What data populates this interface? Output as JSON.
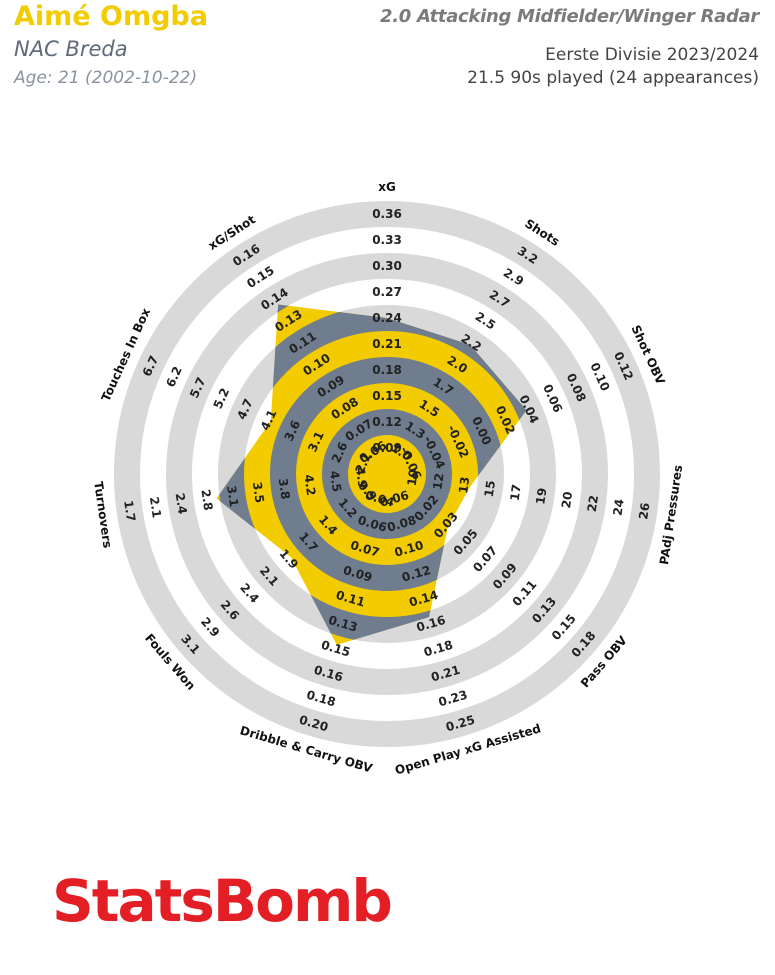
{
  "header": {
    "player_name": "Aimé Omgba",
    "team": "NAC Breda",
    "age": "Age: 21 (2002-10-22)",
    "radar_title": "2.0 Attacking Midfielder/Winger Radar",
    "competition": "Eerste Divisie 2023/2024",
    "minutes": "21.5 90s played (24 appearances)"
  },
  "brand": {
    "logo_text": "StatsBomb"
  },
  "colors": {
    "player_fill": "#f2cb00",
    "ring_dark": "#6f7d8e",
    "ring_light": "#d9d9d9",
    "logo": "#e31e24"
  },
  "chart_data": {
    "type": "radar",
    "metrics": [
      {
        "label": "xG",
        "ticks": [
          "0.09",
          "0.12",
          "0.15",
          "0.18",
          "0.21",
          "0.24",
          "0.27",
          "0.30",
          "0.33",
          "0.36"
        ],
        "value": 0.24
      },
      {
        "label": "Shots",
        "ticks": [
          "1.0",
          "1.3",
          "1.5",
          "1.7",
          "2.0",
          "2.2",
          "2.5",
          "2.7",
          "2.9",
          "3.2"
        ],
        "value": 2.2
      },
      {
        "label": "Shot OBV",
        "ticks": [
          "-0.06",
          "-0.04",
          "-0.02",
          "0.00",
          "0.02",
          "0.04",
          "0.06",
          "0.08",
          "0.10",
          "0.12"
        ],
        "value": 0.038
      },
      {
        "label": "PAdj Pressures",
        "ticks": [
          "10",
          "12",
          "13",
          "15",
          "17",
          "19",
          "20",
          "22",
          "24",
          "26"
        ],
        "value": 14.0
      },
      {
        "label": "Pass OBV",
        "ticks": [
          "0.02",
          "0.03",
          "0.05",
          "0.07",
          "0.09",
          "0.11",
          "0.13",
          "0.15",
          "0.18"
        ],
        "value": 0.062
      },
      {
        "label": "Open Play xG Assisted",
        "ticks": [
          "0.06",
          "0.08",
          "0.10",
          "0.12",
          "0.14",
          "0.16",
          "0.18",
          "0.21",
          "0.23",
          "0.25"
        ],
        "value": 0.16
      },
      {
        "label": "Dribble & Carry OBV",
        "ticks": [
          "0.04",
          "0.06",
          "0.07",
          "0.09",
          "0.11",
          "0.13",
          "0.15",
          "0.16",
          "0.18",
          "0.20"
        ],
        "value": 0.144
      },
      {
        "label": "Fouls Won",
        "ticks": [
          "0.9",
          "1.2",
          "1.4",
          "1.7",
          "1.9",
          "2.1",
          "2.4",
          "2.6",
          "2.9",
          "3.1"
        ],
        "value": 1.85
      },
      {
        "label": "Turnovers",
        "ticks": [
          "4.9",
          "4.5",
          "4.2",
          "3.8",
          "3.5",
          "3.1",
          "2.8",
          "2.4",
          "2.1",
          "1.7"
        ],
        "value": 2.9
      },
      {
        "label": "Touches In Box",
        "ticks": [
          "2.1",
          "2.6",
          "3.1",
          "3.6",
          "4.1",
          "4.7",
          "5.2",
          "5.7",
          "6.2",
          "6.7"
        ],
        "value": 4.1
      },
      {
        "label": "xG/Shot",
        "ticks": [
          "0.06",
          "0.07",
          "0.08",
          "0.09",
          "0.10",
          "0.11",
          "0.13",
          "0.14",
          "0.15",
          "0.16"
        ],
        "value": 0.135
      }
    ]
  }
}
